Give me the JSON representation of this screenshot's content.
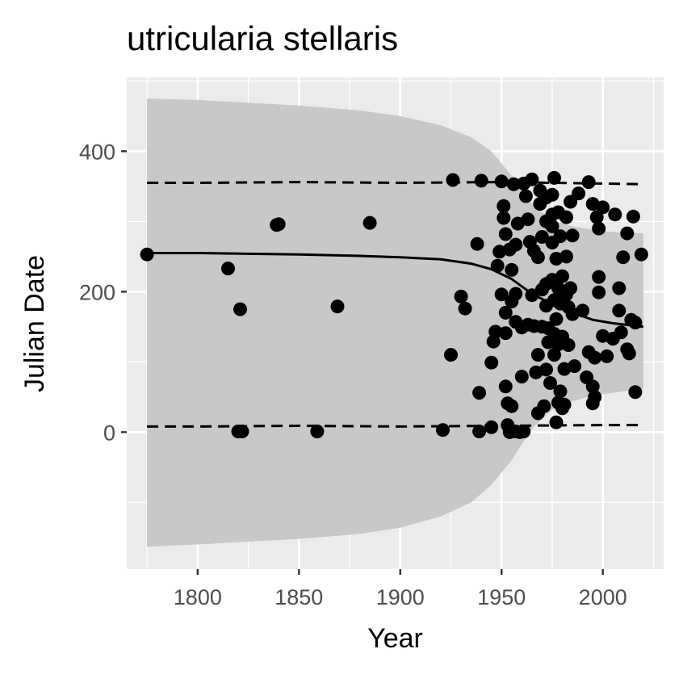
{
  "chart_data": {
    "type": "scatter",
    "title": "utricularia stellaris",
    "xlabel": "Year",
    "ylabel": "Julian Date",
    "xlim": [
      1765,
      2030
    ],
    "ylim": [
      -195,
      505
    ],
    "x_ticks": [
      1800,
      1850,
      1900,
      1950,
      2000
    ],
    "y_ticks": [
      0,
      200,
      400
    ],
    "grid": true,
    "legend": "none",
    "colors": {
      "panel": "#ebebeb",
      "grid": "#ffffff",
      "ribbon": "#c8c8c8",
      "points": "#000000",
      "line": "#000000"
    },
    "fit_line": [
      {
        "x": 1775,
        "y": 255
      },
      {
        "x": 1800,
        "y": 255
      },
      {
        "x": 1850,
        "y": 253
      },
      {
        "x": 1880,
        "y": 251
      },
      {
        "x": 1900,
        "y": 249
      },
      {
        "x": 1920,
        "y": 246
      },
      {
        "x": 1935,
        "y": 240
      },
      {
        "x": 1945,
        "y": 232
      },
      {
        "x": 1955,
        "y": 218
      },
      {
        "x": 1965,
        "y": 197
      },
      {
        "x": 1975,
        "y": 182
      },
      {
        "x": 1985,
        "y": 170
      },
      {
        "x": 1995,
        "y": 160
      },
      {
        "x": 2005,
        "y": 155
      },
      {
        "x": 2020,
        "y": 150
      }
    ],
    "ribbon": [
      {
        "x": 1775,
        "upper": 475,
        "lower": -163
      },
      {
        "x": 1800,
        "upper": 473,
        "lower": -160
      },
      {
        "x": 1850,
        "upper": 465,
        "lower": -152
      },
      {
        "x": 1880,
        "upper": 458,
        "lower": -145
      },
      {
        "x": 1900,
        "upper": 450,
        "lower": -136
      },
      {
        "x": 1920,
        "upper": 437,
        "lower": -120
      },
      {
        "x": 1935,
        "upper": 420,
        "lower": -100
      },
      {
        "x": 1945,
        "upper": 400,
        "lower": -75
      },
      {
        "x": 1955,
        "upper": 365,
        "lower": -40
      },
      {
        "x": 1965,
        "upper": 325,
        "lower": 5
      },
      {
        "x": 1975,
        "upper": 302,
        "lower": 32
      },
      {
        "x": 1985,
        "upper": 293,
        "lower": 44
      },
      {
        "x": 1995,
        "upper": 288,
        "lower": 52
      },
      {
        "x": 2005,
        "upper": 285,
        "lower": 56
      },
      {
        "x": 2020,
        "upper": 283,
        "lower": 62
      }
    ],
    "upper_dashed": [
      {
        "x": 1775,
        "y": 355
      },
      {
        "x": 1800,
        "y": 355
      },
      {
        "x": 1850,
        "y": 356
      },
      {
        "x": 1900,
        "y": 355
      },
      {
        "x": 1950,
        "y": 356
      },
      {
        "x": 2000,
        "y": 354
      },
      {
        "x": 2020,
        "y": 353
      }
    ],
    "lower_dashed": [
      {
        "x": 1775,
        "y": 8
      },
      {
        "x": 1800,
        "y": 8
      },
      {
        "x": 1850,
        "y": 9
      },
      {
        "x": 1900,
        "y": 8
      },
      {
        "x": 1950,
        "y": 9
      },
      {
        "x": 2000,
        "y": 10
      },
      {
        "x": 2020,
        "y": 10
      }
    ],
    "points": [
      {
        "x": 1775,
        "y": 253
      },
      {
        "x": 1815,
        "y": 233
      },
      {
        "x": 1820,
        "y": 1
      },
      {
        "x": 1821,
        "y": 175
      },
      {
        "x": 1822,
        "y": 1
      },
      {
        "x": 1839,
        "y": 295
      },
      {
        "x": 1840,
        "y": 296
      },
      {
        "x": 1859,
        "y": 1
      },
      {
        "x": 1869,
        "y": 179
      },
      {
        "x": 1885,
        "y": 298
      },
      {
        "x": 1921,
        "y": 3
      },
      {
        "x": 1925,
        "y": 110
      },
      {
        "x": 1926,
        "y": 359
      },
      {
        "x": 1930,
        "y": 193
      },
      {
        "x": 1932,
        "y": 176
      },
      {
        "x": 1938,
        "y": 268
      },
      {
        "x": 1939,
        "y": 56
      },
      {
        "x": 1939,
        "y": 1
      },
      {
        "x": 1940,
        "y": 358
      },
      {
        "x": 1945,
        "y": 7
      },
      {
        "x": 1945,
        "y": 99
      },
      {
        "x": 1946,
        "y": 129
      },
      {
        "x": 1947,
        "y": 143
      },
      {
        "x": 1948,
        "y": 237
      },
      {
        "x": 1949,
        "y": 257
      },
      {
        "x": 1950,
        "y": 196
      },
      {
        "x": 1950,
        "y": 357
      },
      {
        "x": 1951,
        "y": 322
      },
      {
        "x": 1951,
        "y": 305
      },
      {
        "x": 1952,
        "y": 282
      },
      {
        "x": 1952,
        "y": 170
      },
      {
        "x": 1952,
        "y": 141
      },
      {
        "x": 1952,
        "y": 65
      },
      {
        "x": 1953,
        "y": 41
      },
      {
        "x": 1953,
        "y": 10
      },
      {
        "x": 1954,
        "y": 0
      },
      {
        "x": 1954,
        "y": 260
      },
      {
        "x": 1955,
        "y": 231
      },
      {
        "x": 1955,
        "y": 186
      },
      {
        "x": 1955,
        "y": 37
      },
      {
        "x": 1956,
        "y": 353
      },
      {
        "x": 1957,
        "y": 267
      },
      {
        "x": 1957,
        "y": 197
      },
      {
        "x": 1957,
        "y": 157
      },
      {
        "x": 1957,
        "y": 1
      },
      {
        "x": 1958,
        "y": 297
      },
      {
        "x": 1959,
        "y": 0
      },
      {
        "x": 1960,
        "y": 149
      },
      {
        "x": 1960,
        "y": 79
      },
      {
        "x": 1961,
        "y": 354
      },
      {
        "x": 1961,
        "y": 1
      },
      {
        "x": 1962,
        "y": 336
      },
      {
        "x": 1963,
        "y": 303
      },
      {
        "x": 1963,
        "y": 153
      },
      {
        "x": 1964,
        "y": 271
      },
      {
        "x": 1965,
        "y": 195
      },
      {
        "x": 1965,
        "y": 360
      },
      {
        "x": 1966,
        "y": 258
      },
      {
        "x": 1966,
        "y": 151
      },
      {
        "x": 1967,
        "y": 85
      },
      {
        "x": 1968,
        "y": 249
      },
      {
        "x": 1968,
        "y": 110
      },
      {
        "x": 1968,
        "y": 27
      },
      {
        "x": 1969,
        "y": 344
      },
      {
        "x": 1969,
        "y": 325
      },
      {
        "x": 1970,
        "y": 278
      },
      {
        "x": 1970,
        "y": 203
      },
      {
        "x": 1970,
        "y": 150
      },
      {
        "x": 1971,
        "y": 37
      },
      {
        "x": 1972,
        "y": 334
      },
      {
        "x": 1972,
        "y": 300
      },
      {
        "x": 1972,
        "y": 211
      },
      {
        "x": 1972,
        "y": 180
      },
      {
        "x": 1972,
        "y": 89
      },
      {
        "x": 1973,
        "y": 148
      },
      {
        "x": 1973,
        "y": 128
      },
      {
        "x": 1974,
        "y": 70
      },
      {
        "x": 1975,
        "y": 338
      },
      {
        "x": 1975,
        "y": 310
      },
      {
        "x": 1975,
        "y": 293
      },
      {
        "x": 1975,
        "y": 270
      },
      {
        "x": 1975,
        "y": 217
      },
      {
        "x": 1976,
        "y": 188
      },
      {
        "x": 1976,
        "y": 140
      },
      {
        "x": 1976,
        "y": 110
      },
      {
        "x": 1976,
        "y": 362
      },
      {
        "x": 1977,
        "y": 247
      },
      {
        "x": 1977,
        "y": 161
      },
      {
        "x": 1977,
        "y": 14
      },
      {
        "x": 1978,
        "y": 313
      },
      {
        "x": 1978,
        "y": 205
      },
      {
        "x": 1978,
        "y": 125
      },
      {
        "x": 1978,
        "y": 42
      },
      {
        "x": 1979,
        "y": 279
      },
      {
        "x": 1979,
        "y": 183
      },
      {
        "x": 1979,
        "y": 58
      },
      {
        "x": 1980,
        "y": 222
      },
      {
        "x": 1980,
        "y": 193
      },
      {
        "x": 1980,
        "y": 136
      },
      {
        "x": 1980,
        "y": 34
      },
      {
        "x": 1981,
        "y": 90
      },
      {
        "x": 1981,
        "y": 39
      },
      {
        "x": 1982,
        "y": 306
      },
      {
        "x": 1982,
        "y": 250
      },
      {
        "x": 1982,
        "y": 196
      },
      {
        "x": 1983,
        "y": 178
      },
      {
        "x": 1983,
        "y": 124
      },
      {
        "x": 1984,
        "y": 328
      },
      {
        "x": 1984,
        "y": 205
      },
      {
        "x": 1985,
        "y": 280
      },
      {
        "x": 1985,
        "y": 168
      },
      {
        "x": 1986,
        "y": 94
      },
      {
        "x": 1988,
        "y": 340
      },
      {
        "x": 1990,
        "y": 173
      },
      {
        "x": 1992,
        "y": 78
      },
      {
        "x": 1993,
        "y": 114
      },
      {
        "x": 1993,
        "y": 356
      },
      {
        "x": 1995,
        "y": 325
      },
      {
        "x": 1995,
        "y": 65
      },
      {
        "x": 1995,
        "y": 41
      },
      {
        "x": 1996,
        "y": 50
      },
      {
        "x": 1996,
        "y": 106
      },
      {
        "x": 1997,
        "y": 306
      },
      {
        "x": 1998,
        "y": 290
      },
      {
        "x": 1998,
        "y": 221
      },
      {
        "x": 1998,
        "y": 199
      },
      {
        "x": 2000,
        "y": 320
      },
      {
        "x": 2000,
        "y": 137
      },
      {
        "x": 2002,
        "y": 108
      },
      {
        "x": 2005,
        "y": 133
      },
      {
        "x": 2006,
        "y": 310
      },
      {
        "x": 2008,
        "y": 205
      },
      {
        "x": 2008,
        "y": 173
      },
      {
        "x": 2009,
        "y": 142
      },
      {
        "x": 2010,
        "y": 249
      },
      {
        "x": 2012,
        "y": 283
      },
      {
        "x": 2012,
        "y": 118
      },
      {
        "x": 2013,
        "y": 112
      },
      {
        "x": 2014,
        "y": 160
      },
      {
        "x": 2015,
        "y": 307
      },
      {
        "x": 2016,
        "y": 57
      },
      {
        "x": 2016,
        "y": 156
      },
      {
        "x": 2019,
        "y": 253
      }
    ]
  }
}
